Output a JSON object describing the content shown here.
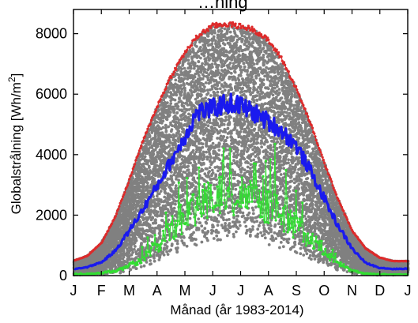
{
  "chart_data": {
    "type": "scatter",
    "title_fragment": "…ning",
    "xlabel": "Månad (år 1983-2014)",
    "ylabel_main": "Globalstrålning [Wh/m",
    "ylabel_sup": "2",
    "ylabel_end": "]",
    "xlim": [
      0,
      365
    ],
    "ylim": [
      0,
      8800
    ],
    "month_ticks": [
      "J",
      "F",
      "M",
      "A",
      "M",
      "J",
      "J",
      "A",
      "S",
      "O",
      "N",
      "D",
      "J"
    ],
    "y_ticks": [
      0,
      2000,
      4000,
      6000,
      8000
    ],
    "y_tick_labels": [
      "0",
      "2000",
      "4000",
      "6000",
      "8000"
    ],
    "grid": false,
    "colors": {
      "scatter": "#808080",
      "max": "#dd2a2a",
      "mean": "#1a1aee",
      "min": "#33dd33"
    },
    "series": [
      {
        "key": "max",
        "x": [
          1,
          15,
          31,
          45,
          59,
          74,
          90,
          105,
          120,
          135,
          151,
          166,
          172,
          181,
          196,
          212,
          227,
          243,
          258,
          273,
          288,
          304,
          319,
          334,
          349,
          365
        ],
        "values": [
          500,
          650,
          1100,
          1900,
          3000,
          4300,
          5500,
          6500,
          7300,
          7900,
          8250,
          8320,
          8300,
          8250,
          8150,
          7800,
          7200,
          6200,
          5100,
          3800,
          2600,
          1500,
          900,
          600,
          480,
          480
        ]
      },
      {
        "key": "mean",
        "x": [
          1,
          15,
          31,
          45,
          59,
          74,
          90,
          105,
          120,
          135,
          151,
          166,
          181,
          196,
          212,
          227,
          243,
          258,
          273,
          288,
          304,
          319,
          334,
          349,
          365
        ],
        "values": [
          220,
          280,
          450,
          800,
          1400,
          2100,
          2900,
          3700,
          4500,
          5400,
          5500,
          5700,
          5650,
          5400,
          5100,
          4800,
          4300,
          3500,
          2600,
          1700,
          900,
          420,
          260,
          220,
          230
        ]
      },
      {
        "key": "min",
        "x": [
          1,
          15,
          31,
          45,
          59,
          74,
          90,
          105,
          120,
          135,
          151,
          166,
          181,
          196,
          212,
          227,
          243,
          258,
          273,
          288,
          304,
          319,
          334,
          349,
          365
        ],
        "values": [
          30,
          40,
          60,
          100,
          200,
          400,
          700,
          1100,
          1400,
          1700,
          1900,
          2000,
          2000,
          1900,
          1700,
          1500,
          1200,
          900,
          600,
          300,
          120,
          50,
          30,
          25,
          25
        ]
      }
    ]
  }
}
